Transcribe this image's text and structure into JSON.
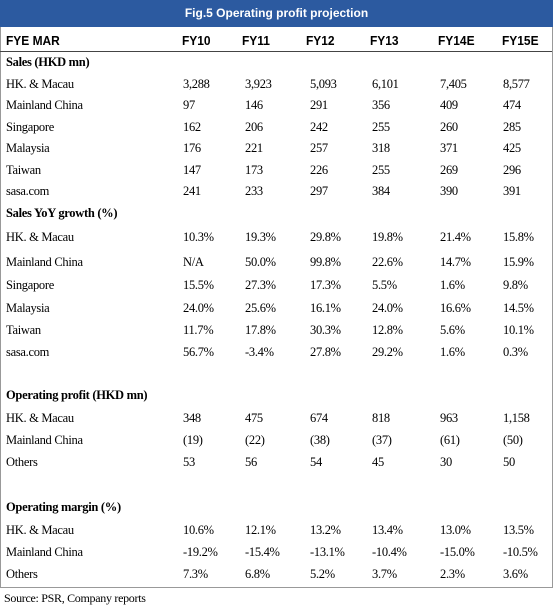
{
  "header": {
    "title": "Fig.5 Operating profit projection"
  },
  "table": {
    "columns": [
      "FYE MAR",
      "FY10",
      "FY11",
      "FY12",
      "FY13",
      "FY14E",
      "FY15E"
    ],
    "sections": [
      {
        "title": "Sales (HKD mn)",
        "rows": [
          {
            "label": "HK. & Macau",
            "values": [
              "3,288",
              "3,923",
              "5,093",
              "6,101",
              "7,405",
              "8,577"
            ]
          },
          {
            "label": "Mainland China",
            "values": [
              "97",
              "146",
              "291",
              "356",
              "409",
              "474"
            ]
          },
          {
            "label": "Singapore",
            "values": [
              "162",
              "206",
              "242",
              "255",
              "260",
              "285"
            ]
          },
          {
            "label": "Malaysia",
            "values": [
              "176",
              "221",
              "257",
              "318",
              "371",
              "425"
            ]
          },
          {
            "label": "Taiwan",
            "values": [
              "147",
              "173",
              "226",
              "255",
              "269",
              "296"
            ]
          },
          {
            "label": "sasa.com",
            "values": [
              "241",
              "233",
              "297",
              "384",
              "390",
              "391"
            ]
          }
        ]
      },
      {
        "title": "Sales YoY growth (%)",
        "rows": [
          {
            "label": "HK. & Macau",
            "values": [
              "10.3%",
              "19.3%",
              "29.8%",
              "19.8%",
              "21.4%",
              "15.8%"
            ]
          },
          {
            "label": "Mainland China",
            "values": [
              "N/A",
              "50.0%",
              "99.8%",
              "22.6%",
              "14.7%",
              "15.9%"
            ]
          },
          {
            "label": "Singapore",
            "values": [
              "15.5%",
              "27.3%",
              "17.3%",
              "5.5%",
              "1.6%",
              "9.8%"
            ]
          },
          {
            "label": "Malaysia",
            "values": [
              "24.0%",
              "25.6%",
              "16.1%",
              "24.0%",
              "16.6%",
              "14.5%"
            ]
          },
          {
            "label": "Taiwan",
            "values": [
              "11.7%",
              "17.8%",
              "30.3%",
              "12.8%",
              "5.6%",
              "10.1%"
            ]
          },
          {
            "label": "sasa.com",
            "values": [
              "56.7%",
              "-3.4%",
              "27.8%",
              "29.2%",
              "1.6%",
              "0.3%"
            ]
          }
        ]
      },
      {
        "title": "Operating profit (HKD mn)",
        "rows": [
          {
            "label": "HK. & Macau",
            "values": [
              "348",
              "475",
              "674",
              "818",
              "963",
              "1,158"
            ]
          },
          {
            "label": "Mainland China",
            "values": [
              "(19)",
              "(22)",
              "(38)",
              "(37)",
              "(61)",
              "(50)"
            ]
          },
          {
            "label": "Others",
            "values": [
              "53",
              "56",
              "54",
              "45",
              "30",
              "50"
            ]
          }
        ]
      },
      {
        "title": "Operating margin (%)",
        "rows": [
          {
            "label": "HK. & Macau",
            "values": [
              "10.6%",
              "12.1%",
              "13.2%",
              "13.4%",
              "13.0%",
              "13.5%"
            ]
          },
          {
            "label": "Mainland China",
            "values": [
              "-19.2%",
              "-15.4%",
              "-13.1%",
              "-10.4%",
              "-15.0%",
              "-10.5%"
            ]
          },
          {
            "label": "Others",
            "values": [
              "7.3%",
              "6.8%",
              "5.2%",
              "3.7%",
              "2.3%",
              "3.6%"
            ]
          }
        ]
      }
    ]
  },
  "source": "Source: PSR, Company reports"
}
